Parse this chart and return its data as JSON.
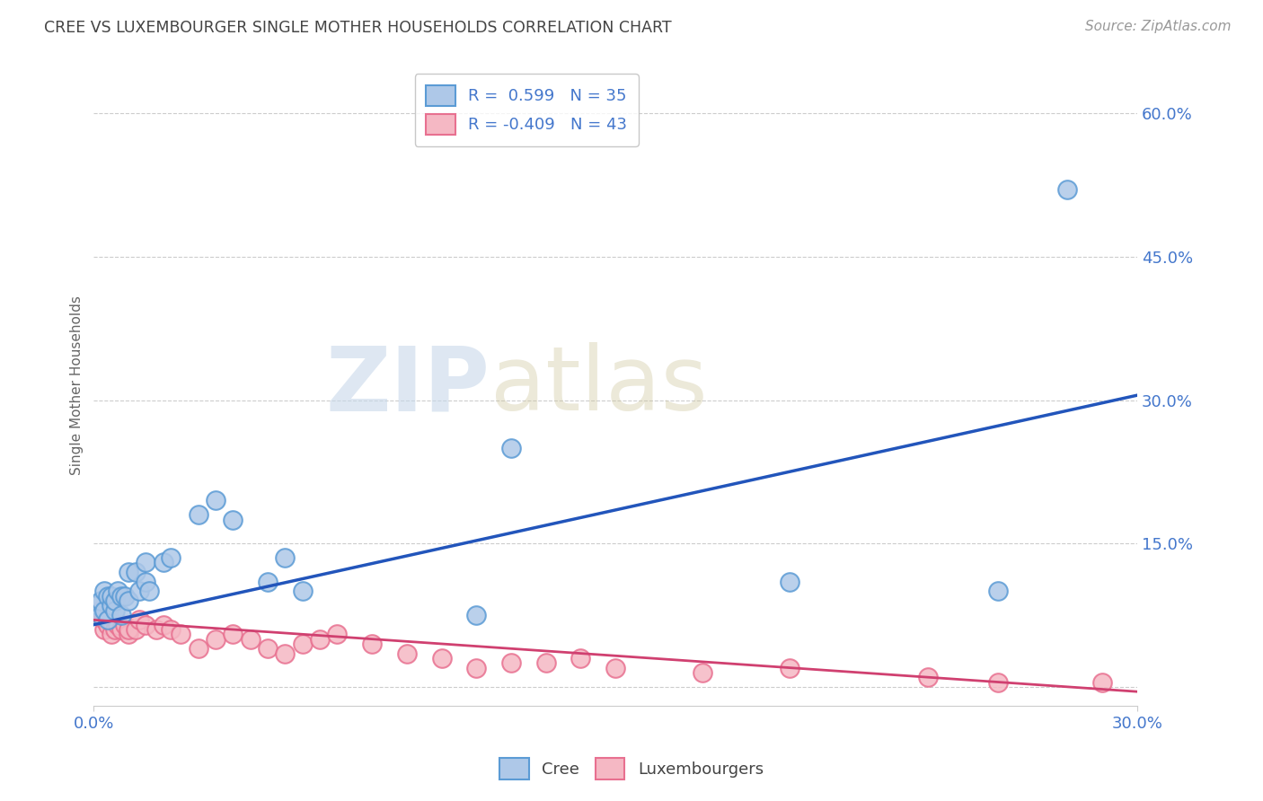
{
  "title": "CREE VS LUXEMBOURGER SINGLE MOTHER HOUSEHOLDS CORRELATION CHART",
  "source": "Source: ZipAtlas.com",
  "ylabel": "Single Mother Households",
  "xlabel": "",
  "xlim": [
    0.0,
    0.3
  ],
  "ylim": [
    -0.02,
    0.65
  ],
  "yticks": [
    0.0,
    0.15,
    0.3,
    0.45,
    0.6
  ],
  "ytick_labels": [
    "",
    "15.0%",
    "30.0%",
    "45.0%",
    "60.0%"
  ],
  "xticks": [
    0.0,
    0.3
  ],
  "xtick_labels": [
    "0.0%",
    "30.0%"
  ],
  "watermark_zip": "ZIP",
  "watermark_atlas": "atlas",
  "cree_color": "#aec8e8",
  "luxembourger_color": "#f5b8c4",
  "cree_edge_color": "#5b9bd5",
  "luxembourger_edge_color": "#e87090",
  "cree_line_color": "#2255bb",
  "luxembourger_line_color": "#d04070",
  "cree_R": "0.599",
  "cree_N": "35",
  "luxembourger_R": "-0.409",
  "luxembourger_N": "43",
  "background_color": "#ffffff",
  "grid_color": "#cccccc",
  "title_color": "#444444",
  "axis_label_color": "#666666",
  "tick_color": "#4477cc",
  "legend_box_color": "#dddddd",
  "cree_x": [
    0.001,
    0.002,
    0.002,
    0.003,
    0.003,
    0.004,
    0.004,
    0.005,
    0.005,
    0.006,
    0.006,
    0.007,
    0.008,
    0.008,
    0.009,
    0.01,
    0.01,
    0.012,
    0.013,
    0.015,
    0.015,
    0.016,
    0.02,
    0.022,
    0.03,
    0.035,
    0.04,
    0.05,
    0.055,
    0.06,
    0.11,
    0.12,
    0.2,
    0.26,
    0.28
  ],
  "cree_y": [
    0.085,
    0.075,
    0.09,
    0.08,
    0.1,
    0.07,
    0.095,
    0.085,
    0.095,
    0.08,
    0.09,
    0.1,
    0.095,
    0.075,
    0.095,
    0.12,
    0.09,
    0.12,
    0.1,
    0.13,
    0.11,
    0.1,
    0.13,
    0.135,
    0.18,
    0.195,
    0.175,
    0.11,
    0.135,
    0.1,
    0.075,
    0.25,
    0.11,
    0.1,
    0.52
  ],
  "lux_x": [
    0.001,
    0.002,
    0.003,
    0.003,
    0.004,
    0.004,
    0.005,
    0.005,
    0.006,
    0.007,
    0.008,
    0.009,
    0.01,
    0.01,
    0.012,
    0.013,
    0.015,
    0.018,
    0.02,
    0.022,
    0.025,
    0.03,
    0.035,
    0.04,
    0.045,
    0.05,
    0.055,
    0.06,
    0.065,
    0.07,
    0.08,
    0.09,
    0.1,
    0.11,
    0.12,
    0.13,
    0.14,
    0.15,
    0.175,
    0.2,
    0.24,
    0.26,
    0.29
  ],
  "lux_y": [
    0.075,
    0.08,
    0.06,
    0.07,
    0.065,
    0.075,
    0.055,
    0.068,
    0.06,
    0.065,
    0.06,
    0.065,
    0.055,
    0.06,
    0.06,
    0.07,
    0.065,
    0.06,
    0.065,
    0.06,
    0.055,
    0.04,
    0.05,
    0.055,
    0.05,
    0.04,
    0.035,
    0.045,
    0.05,
    0.055,
    0.045,
    0.035,
    0.03,
    0.02,
    0.025,
    0.025,
    0.03,
    0.02,
    0.015,
    0.02,
    0.01,
    0.005,
    0.005
  ],
  "cree_line_x0": 0.0,
  "cree_line_y0": 0.065,
  "cree_line_x1": 0.3,
  "cree_line_y1": 0.305,
  "lux_line_x0": 0.0,
  "lux_line_y0": 0.07,
  "lux_line_x1": 0.3,
  "lux_line_y1": -0.005
}
